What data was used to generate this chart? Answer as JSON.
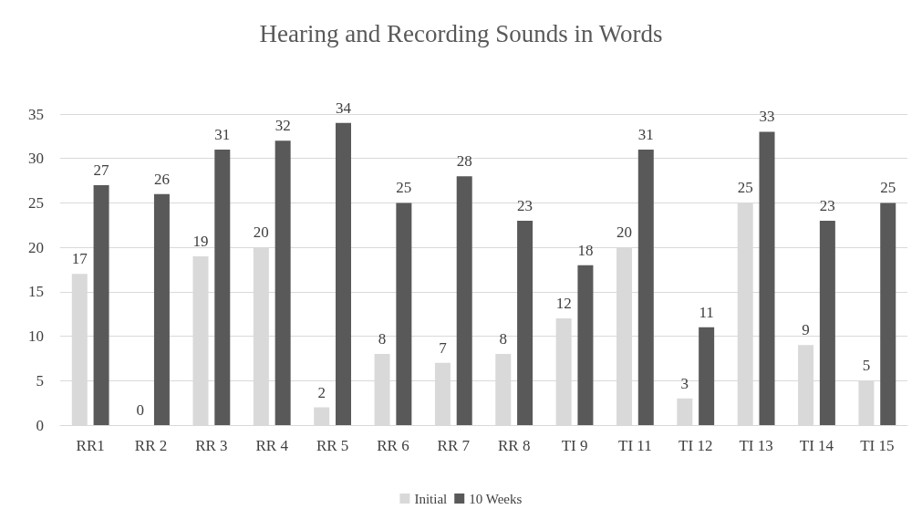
{
  "chart_data": {
    "type": "bar",
    "title": "Hearing and Recording Sounds in Words",
    "categories": [
      "RR1",
      "RR 2",
      "RR 3",
      "RR 4",
      "RR 5",
      "RR 6",
      "RR 7",
      "RR 8",
      "TI 9",
      "TI 11",
      "TI 12",
      "TI 13",
      "TI 14",
      "TI 15"
    ],
    "series": [
      {
        "name": "Initial",
        "color": "#d9d9d9",
        "values": [
          17,
          0,
          19,
          20,
          2,
          8,
          7,
          8,
          12,
          20,
          3,
          25,
          9,
          5
        ]
      },
      {
        "name": "10 Weeks",
        "color": "#595959",
        "values": [
          27,
          26,
          31,
          32,
          34,
          25,
          28,
          23,
          18,
          31,
          11,
          33,
          23,
          25
        ]
      }
    ],
    "ylim": [
      0,
      35
    ],
    "yticks": [
      0,
      5,
      10,
      15,
      20,
      25,
      30,
      35
    ],
    "grid": "y",
    "legend": "bottom",
    "data_labels": true
  }
}
